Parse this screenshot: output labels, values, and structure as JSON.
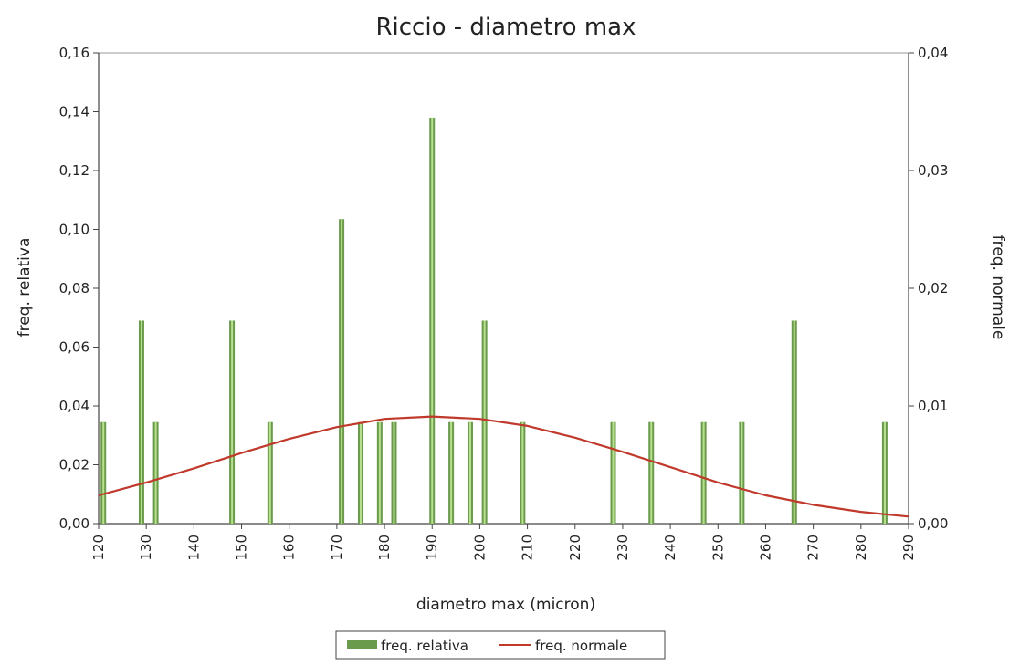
{
  "chart_data": {
    "type": "bar",
    "title": "Riccio - diametro max",
    "xlabel": "diametro max (micron)",
    "ylabel": "freq. relativa",
    "y2label": "freq. normale",
    "xlim": [
      120,
      290
    ],
    "ylim": [
      0,
      0.16
    ],
    "y2lim": [
      0,
      0.04
    ],
    "x_ticks": [
      "120",
      "130",
      "140",
      "150",
      "160",
      "170",
      "180",
      "190",
      "200",
      "210",
      "220",
      "230",
      "240",
      "250",
      "260",
      "270",
      "280",
      "290"
    ],
    "y_ticks": [
      "0,00",
      "0,02",
      "0,04",
      "0,06",
      "0,08",
      "0,10",
      "0,12",
      "0,14",
      "0,16"
    ],
    "y2_ticks": [
      "0,00",
      "0,01",
      "0,02",
      "0,03",
      "0,04"
    ],
    "grid": false,
    "legend_position": "bottom",
    "colors": {
      "bars": "#6a9a4c",
      "bars_highlight": "#b9e08e",
      "line": "#c0392b"
    },
    "series": [
      {
        "name": "freq. relativa",
        "type": "bar",
        "axis": "left",
        "x": [
          121,
          129,
          132,
          148,
          156,
          171,
          175,
          179,
          182,
          190,
          194,
          198,
          201,
          209,
          228,
          236,
          247,
          255,
          266,
          285
        ],
        "values": [
          0.0345,
          0.069,
          0.0345,
          0.069,
          0.0345,
          0.1035,
          0.0345,
          0.0345,
          0.0345,
          0.138,
          0.0345,
          0.0345,
          0.069,
          0.0345,
          0.0345,
          0.0345,
          0.0345,
          0.0345,
          0.069,
          0.0345
        ]
      },
      {
        "name": "freq. normale",
        "type": "line",
        "axis": "right",
        "x": [
          120,
          130,
          140,
          150,
          160,
          170,
          180,
          190,
          200,
          210,
          220,
          230,
          240,
          250,
          260,
          270,
          280,
          290
        ],
        "values": [
          0.0024,
          0.0035,
          0.0047,
          0.006,
          0.0072,
          0.0082,
          0.0089,
          0.0091,
          0.0089,
          0.0083,
          0.0073,
          0.0061,
          0.0048,
          0.0035,
          0.0024,
          0.0016,
          0.001,
          0.0006
        ]
      }
    ]
  }
}
